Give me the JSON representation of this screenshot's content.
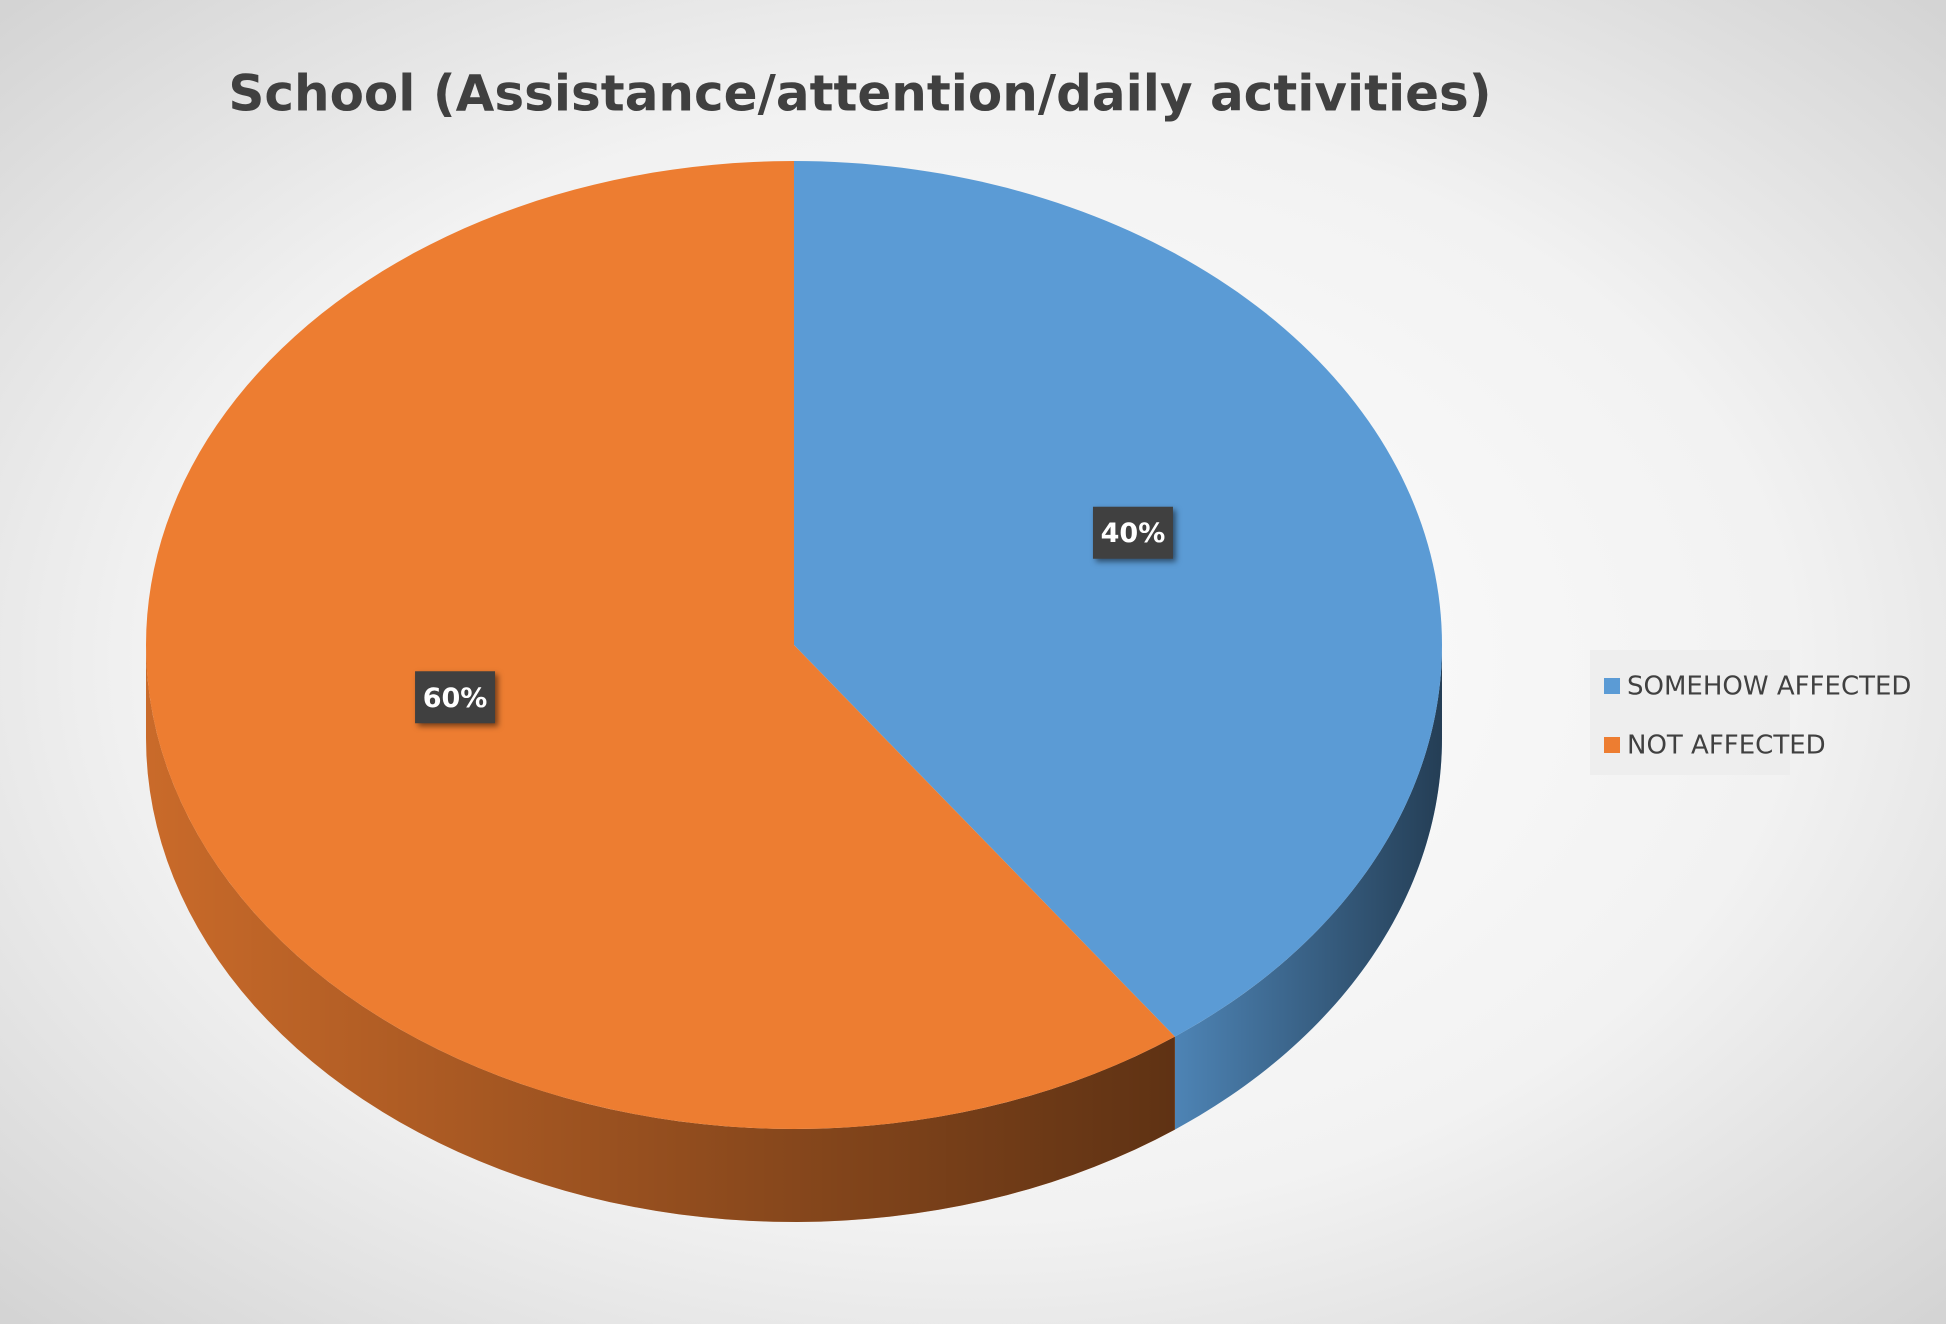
{
  "chart_data": {
    "type": "pie",
    "title": "School (Assistance/attention/daily activities)",
    "categories": [
      "SOMEHOW AFFECTED",
      "NOT AFFECTED"
    ],
    "values": [
      40,
      60
    ],
    "value_labels": [
      "40%",
      "60%"
    ],
    "colors": [
      "#5b9bd5",
      "#ed7d31"
    ],
    "legend": "right"
  }
}
